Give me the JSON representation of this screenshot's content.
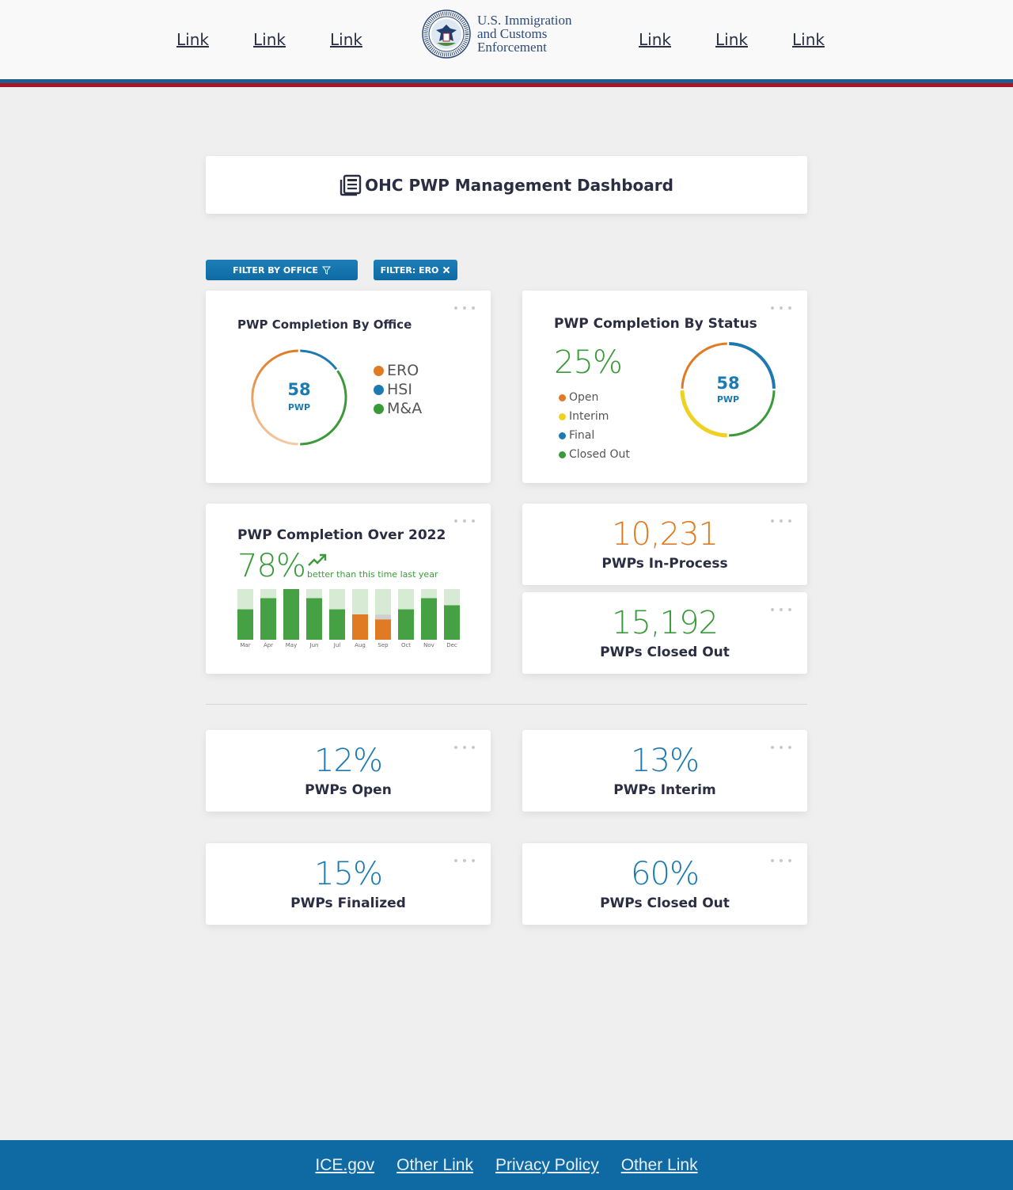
{
  "header": {
    "nav_left": [
      "Link",
      "Link",
      "Link"
    ],
    "nav_right": [
      "Link",
      "Link",
      "Link"
    ],
    "logo_lines": [
      "U.S. Immigration",
      "and Customs",
      "Enforcement"
    ]
  },
  "title": {
    "text": "OHC PWP Management Dashboard",
    "icon": "newspaper-icon"
  },
  "filters": {
    "office_label": "FILTER BY OFFICE",
    "active_label": "FILTER: ERO"
  },
  "office_card": {
    "title": "PWP Completion By Office",
    "center_value": "58",
    "center_unit": "PWP",
    "legend": [
      {
        "label": "ERO",
        "color": "#e07b24"
      },
      {
        "label": "HSI",
        "color": "#1d7ab0"
      },
      {
        "label": "M&A",
        "color": "#3a9a3a"
      }
    ]
  },
  "status_card": {
    "title": "PWP Completion By Status",
    "percent": "25%",
    "center_value": "58",
    "center_unit": "PWP",
    "legend": [
      {
        "label": "Open",
        "color": "#e07b24"
      },
      {
        "label": "Interim",
        "color": "#eed221"
      },
      {
        "label": "Final",
        "color": "#1d7ab0"
      },
      {
        "label": "Closed Out",
        "color": "#3a9a3a"
      }
    ]
  },
  "year_card": {
    "title": "PWP Completion Over 2022",
    "percent": "78%",
    "trend_text": "better than this time last year"
  },
  "stats_top": [
    {
      "value": "10,231",
      "label": "PWPs In-Process",
      "color": "#e07b24"
    },
    {
      "value": "15,192",
      "label": "PWPs Closed Out",
      "color": "#3a9a3a"
    }
  ],
  "stats_bottom": [
    {
      "value": "12%",
      "label": "PWPs Open",
      "color": "#1d7ab0"
    },
    {
      "value": "13%",
      "label": "PWPs Interim",
      "color": "#1d7ab0"
    },
    {
      "value": "15%",
      "label": "PWPs Finalized",
      "color": "#1d7ab0"
    },
    {
      "value": "60%",
      "label": "PWPs Closed Out",
      "color": "#1d7ab0"
    }
  ],
  "footer": {
    "links": [
      "ICE.gov",
      "Other Link",
      "Privacy Policy",
      "Other Link"
    ]
  },
  "chart_data": [
    {
      "type": "pie",
      "categories": [
        "ERO",
        "HSI",
        "M&A"
      ],
      "values": [
        50,
        15,
        35
      ],
      "center_label": "58 PWP"
    },
    {
      "type": "pie",
      "categories": [
        "Open",
        "Interim",
        "Final",
        "Closed Out"
      ],
      "values": [
        25,
        25,
        25,
        25
      ],
      "center_label": "58 PWP"
    },
    {
      "type": "bar",
      "categories": [
        "Mar",
        "Apr",
        "May",
        "Jun",
        "Jul",
        "Aug",
        "Sep",
        "Oct",
        "Nov",
        "Dec"
      ],
      "values": [
        60,
        82,
        100,
        82,
        60,
        50,
        40,
        60,
        82,
        68
      ],
      "highlighted": [
        "Aug",
        "Sep"
      ],
      "ylim": [
        0,
        100
      ]
    }
  ]
}
